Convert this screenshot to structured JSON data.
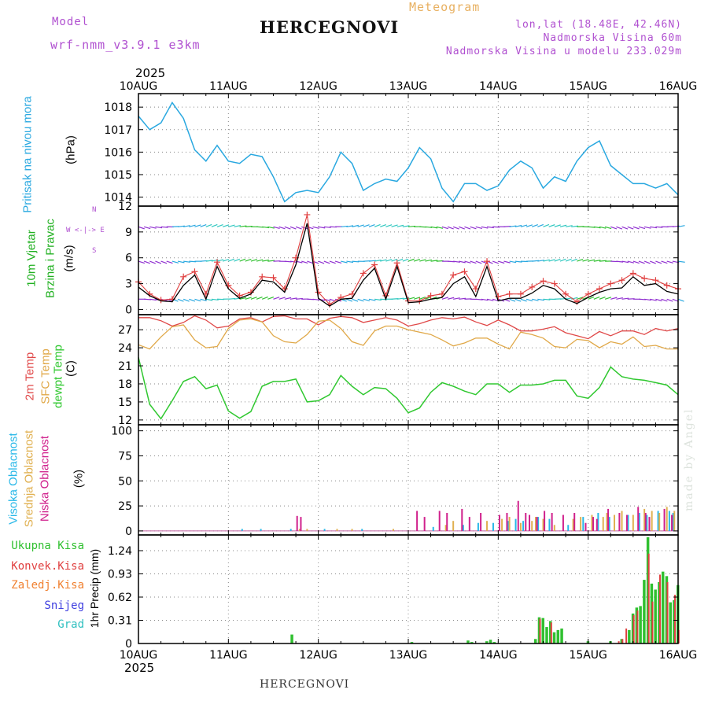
{
  "header": {
    "model_label": "Model",
    "model_name": "wrf-nmm_v3.9.1 e3km",
    "title": "HERCEGNOVI",
    "subtitle": "Meteogram",
    "lonlat": "lon,lat (18.48E, 42.46N)",
    "elevation": "Nadmorska Visina 60m",
    "model_elevation": "Nadmorska Visina u modelu 233.029m"
  },
  "footer": {
    "station": "HERCEGNOVI",
    "credit": "made by Angel"
  },
  "x_axis": {
    "year": "2025",
    "ticks": [
      "10AUG",
      "11AUG",
      "12AUG",
      "13AUG",
      "14AUG",
      "15AUG",
      "16AUG"
    ],
    "range_hours": [
      0,
      144
    ]
  },
  "panel_labels": {
    "pressure": {
      "title": "Pritisak na nivou mora",
      "unit": "(hPa)"
    },
    "wind": {
      "title1": "10m Vjetar",
      "title2": "Brzina i Pravac",
      "unit": "(m/s)",
      "compass": "W <-|-> E",
      "compass_n": "N",
      "compass_s": "S"
    },
    "temp": {
      "t2m": "2m Temp",
      "sfc": "SFC Temp",
      "dew": "dewpt Temp",
      "unit": "(C)"
    },
    "cloud": {
      "high": "Visoka Oblacnost",
      "mid": "Srednja Oblacnost",
      "low": "Niska Oblacnost",
      "unit": "(%)"
    },
    "precip": {
      "total": "Ukupna Kisa",
      "conv": "Konvek.Kisa",
      "frozen": "Zaledj.Kisa",
      "snow": "Snijeg",
      "hail": "Grad",
      "unit": "1hr Precip (mm)"
    }
  },
  "colors": {
    "pressure": "#29a8e0",
    "wind_speed": "#000000",
    "wind_gust": "#e04040",
    "t2m": "#e04848",
    "sfc": "#e0a848",
    "dew": "#30c830",
    "cloud_high": "#29b8e8",
    "cloud_mid": "#e0b050",
    "cloud_low": "#d0208c",
    "precip_total": "#30c030",
    "precip_conv": "#e04040",
    "precip_frozen": "#f08030",
    "snow": "#4040e0",
    "hail": "#30c0c0",
    "panel_title_pressure": "#29a8e0",
    "panel_title_wind": "#20b020",
    "purple": "#b050d0"
  },
  "chart_data": [
    {
      "type": "line",
      "name": "pressure",
      "title": "Pritisak na nivou mora",
      "ylabel": "hPa",
      "yticks": [
        1014,
        1015,
        1016,
        1017,
        1018
      ],
      "ylim": [
        1013.6,
        1018.6
      ],
      "x_hours": [
        0,
        3,
        6,
        9,
        12,
        15,
        18,
        21,
        24,
        27,
        30,
        33,
        36,
        39,
        42,
        45,
        48,
        51,
        54,
        57,
        60,
        63,
        66,
        69,
        72,
        75,
        78,
        81,
        84,
        87,
        90,
        93,
        96,
        99,
        102,
        105,
        108,
        111,
        114,
        117,
        120,
        123,
        126,
        129,
        132,
        135,
        138,
        141,
        144
      ],
      "values": [
        1017.6,
        1017.0,
        1017.3,
        1018.2,
        1017.5,
        1016.1,
        1015.6,
        1016.3,
        1015.6,
        1015.5,
        1015.9,
        1015.8,
        1014.9,
        1013.8,
        1014.2,
        1014.3,
        1014.2,
        1014.9,
        1016.0,
        1015.5,
        1014.3,
        1014.6,
        1014.8,
        1014.7,
        1015.3,
        1016.2,
        1015.7,
        1014.4,
        1013.8,
        1014.6,
        1014.6,
        1014.3,
        1014.5,
        1015.2,
        1015.6,
        1015.3,
        1014.4,
        1014.9,
        1014.7,
        1015.6,
        1016.2,
        1016.5,
        1015.4,
        1015.0,
        1014.6,
        1014.6,
        1014.4,
        1014.6,
        1014.1
      ]
    },
    {
      "type": "line",
      "name": "wind",
      "title": "10m Vjetar Brzina i Pravac",
      "ylabel": "m/s",
      "yticks": [
        0,
        3,
        6,
        9,
        12
      ],
      "ylim": [
        -0.6,
        12
      ],
      "x_hours": [
        0,
        3,
        6,
        9,
        12,
        15,
        18,
        21,
        24,
        27,
        30,
        33,
        36,
        39,
        42,
        45,
        48,
        51,
        54,
        57,
        60,
        63,
        66,
        69,
        72,
        75,
        78,
        81,
        84,
        87,
        90,
        93,
        96,
        99,
        102,
        105,
        108,
        111,
        114,
        117,
        120,
        123,
        126,
        129,
        132,
        135,
        138,
        141,
        144
      ],
      "series": [
        {
          "name": "speed",
          "values": [
            2.6,
            1.6,
            1.0,
            0.9,
            2.8,
            4.0,
            1.2,
            5.0,
            2.4,
            1.3,
            1.8,
            3.4,
            3.2,
            2.0,
            5.2,
            10.0,
            1.3,
            0.4,
            1.2,
            1.3,
            3.4,
            4.8,
            1.2,
            5.0,
            0.8,
            0.9,
            1.2,
            1.4,
            3.0,
            3.8,
            1.5,
            5.0,
            1.0,
            1.3,
            1.3,
            1.9,
            2.8,
            2.4,
            1.2,
            0.7,
            1.4,
            2.0,
            2.4,
            2.5,
            3.8,
            2.8,
            3.0,
            2.1,
            1.8
          ]
        },
        {
          "name": "gust",
          "values": [
            3.2,
            1.8,
            1.1,
            1.2,
            3.8,
            4.4,
            1.8,
            5.5,
            2.8,
            1.6,
            2.0,
            3.8,
            3.7,
            2.4,
            6.0,
            11.0,
            2.0,
            0.6,
            1.4,
            1.8,
            4.2,
            5.2,
            1.6,
            5.4,
            1.0,
            1.0,
            1.6,
            1.8,
            4.0,
            4.4,
            2.4,
            5.6,
            1.5,
            1.8,
            1.8,
            2.6,
            3.3,
            3.0,
            1.8,
            0.9,
            1.8,
            2.4,
            3.0,
            3.4,
            4.2,
            3.6,
            3.4,
            2.8,
            2.4
          ]
        }
      ],
      "barb_rows_m_s": [
        1.2,
        5.6,
        9.6
      ]
    },
    {
      "type": "line",
      "name": "temperature",
      "ylabel": "C",
      "yticks": [
        12,
        15,
        18,
        21,
        24,
        27
      ],
      "ylim": [
        11.2,
        29.5
      ],
      "x_hours": [
        0,
        3,
        6,
        9,
        12,
        15,
        18,
        21,
        24,
        27,
        30,
        33,
        36,
        39,
        42,
        45,
        48,
        51,
        54,
        57,
        60,
        63,
        66,
        69,
        72,
        75,
        78,
        81,
        84,
        87,
        90,
        93,
        96,
        99,
        102,
        105,
        108,
        111,
        114,
        117,
        120,
        123,
        126,
        129,
        132,
        135,
        138,
        141,
        144
      ],
      "series": [
        {
          "name": "2m Temp",
          "values": [
            29.0,
            29.0,
            28.5,
            27.6,
            28.2,
            29.3,
            28.6,
            27.3,
            27.6,
            28.8,
            29.0,
            28.3,
            29.2,
            29.3,
            28.8,
            28.8,
            27.8,
            28.9,
            29.2,
            29.0,
            28.2,
            28.6,
            29.0,
            28.6,
            27.6,
            28.0,
            28.6,
            29.0,
            28.8,
            29.1,
            28.3,
            27.7,
            28.6,
            27.8,
            26.8,
            26.8,
            27.1,
            27.5,
            26.5,
            26.0,
            25.5,
            26.7,
            26.0,
            26.8,
            26.8,
            26.2,
            27.2,
            26.8,
            27.2
          ]
        },
        {
          "name": "SFC Temp",
          "values": [
            24.5,
            23.8,
            25.8,
            27.5,
            27.8,
            25.3,
            24.0,
            24.2,
            27.2,
            28.6,
            28.8,
            28.3,
            26.0,
            25.0,
            24.8,
            26.2,
            28.4,
            28.6,
            27.2,
            25.0,
            24.4,
            26.8,
            27.6,
            27.6,
            27.0,
            26.6,
            26.2,
            25.3,
            24.3,
            24.8,
            25.6,
            25.6,
            24.6,
            23.8,
            26.6,
            26.2,
            25.6,
            24.2,
            24.0,
            25.4,
            25.2,
            24.0,
            25.0,
            24.6,
            25.8,
            24.2,
            24.4,
            23.8,
            23.8
          ]
        },
        {
          "name": "dewpt Temp",
          "values": [
            22.4,
            14.6,
            12.2,
            15.2,
            18.4,
            19.2,
            17.2,
            17.8,
            13.5,
            12.3,
            13.4,
            17.6,
            18.4,
            18.4,
            18.8,
            15.0,
            15.2,
            16.2,
            19.4,
            17.6,
            16.2,
            17.4,
            17.2,
            15.6,
            13.2,
            14.0,
            16.6,
            18.2,
            17.6,
            16.8,
            16.2,
            18.0,
            18.0,
            16.6,
            17.8,
            17.8,
            18.0,
            18.6,
            18.6,
            16.0,
            15.6,
            17.4,
            20.8,
            19.2,
            18.8,
            18.6,
            18.2,
            17.8,
            16.2
          ]
        }
      ]
    },
    {
      "type": "bar",
      "name": "cloud cover",
      "ylabel": "%",
      "yticks": [
        0,
        25,
        50,
        75,
        100
      ],
      "ylim": [
        -4,
        106
      ],
      "series": [
        {
          "name": "Visoka Oblacnost",
          "x_hours": [
            28,
            33,
            41,
            50,
            60,
            79,
            87,
            91,
            95,
            99,
            101,
            103,
            107,
            110,
            115,
            119,
            123,
            126,
            131,
            134,
            136,
            139,
            142,
            143
          ],
          "values": [
            2,
            2,
            2,
            2,
            2,
            4,
            6,
            8,
            8,
            10,
            12,
            10,
            14,
            12,
            6,
            14,
            18,
            14,
            16,
            18,
            16,
            20,
            20,
            18
          ]
        },
        {
          "name": "Srednja Oblacnost",
          "x_hours": [
            43,
            45,
            53,
            57,
            68,
            82,
            84,
            93,
            97,
            99,
            102,
            105,
            106,
            108,
            111,
            116,
            118,
            121,
            124,
            125,
            127,
            129,
            132,
            135,
            137,
            139,
            141,
            143
          ],
          "values": [
            2,
            2,
            2,
            2,
            2,
            6,
            10,
            10,
            12,
            14,
            8,
            10,
            14,
            12,
            6,
            12,
            14,
            16,
            14,
            18,
            16,
            20,
            16,
            22,
            20,
            18,
            24,
            20
          ]
        },
        {
          "name": "Niska Oblacnost",
          "x_hours": [
            42,
            43,
            74,
            76,
            80,
            82,
            86,
            88,
            91,
            96,
            98,
            101,
            103,
            104,
            106,
            108,
            110,
            113,
            116,
            119,
            121,
            122,
            125,
            128,
            130,
            133,
            135,
            136,
            140,
            142
          ],
          "values": [
            15,
            14,
            20,
            14,
            20,
            18,
            22,
            14,
            18,
            16,
            18,
            30,
            18,
            16,
            14,
            20,
            18,
            16,
            18,
            8,
            14,
            12,
            22,
            18,
            16,
            24,
            18,
            14,
            22,
            16
          ]
        }
      ]
    },
    {
      "type": "bar",
      "name": "1hr precipitation",
      "ylabel": "mm",
      "yticks": [
        0,
        0.31,
        0.62,
        0.93,
        1.24
      ],
      "ylim": [
        0,
        1.45
      ],
      "series": [
        {
          "name": "Ukupna Kisa",
          "x_hours": [
            41,
            73,
            88,
            89,
            93,
            94,
            95,
            106,
            107,
            108,
            109,
            110,
            111,
            112,
            113,
            120,
            126,
            129,
            131,
            132,
            133,
            134,
            135,
            136,
            137,
            138,
            139,
            140,
            141,
            142,
            143,
            144
          ],
          "values": [
            0.12,
            0.02,
            0.04,
            0.02,
            0.03,
            0.05,
            0.02,
            0.06,
            0.35,
            0.34,
            0.22,
            0.3,
            0.15,
            0.18,
            0.2,
            0.03,
            0.03,
            0.06,
            0.18,
            0.4,
            0.48,
            0.5,
            0.85,
            1.42,
            0.8,
            0.72,
            0.82,
            0.96,
            0.9,
            0.55,
            0.58,
            0.78
          ]
        },
        {
          "name": "Konvek.Kisa",
          "x_hours": [
            107,
            110,
            128,
            129,
            130,
            132,
            133,
            136,
            137,
            139,
            141,
            143,
            144
          ],
          "values": [
            0.33,
            0.28,
            0.03,
            0.06,
            0.2,
            0.38,
            0.44,
            1.2,
            0.56,
            0.92,
            0.82,
            0.65,
            0.18
          ]
        }
      ]
    }
  ]
}
